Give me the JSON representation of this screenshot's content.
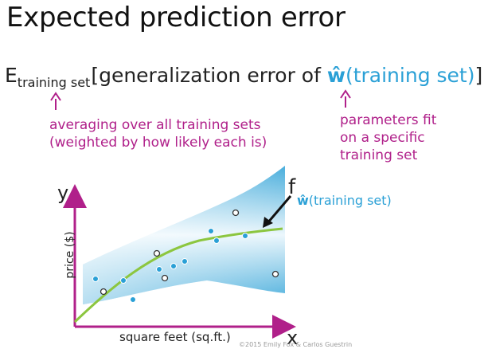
{
  "title": "Expected prediction error",
  "formula": {
    "e": "E",
    "sub": "training set",
    "open": "[generalization error of ",
    "w": "ŵ",
    "arg": "(training set)",
    "close": "]"
  },
  "notes": {
    "left_line1": "averaging over all training sets",
    "left_line2": "(weighted by how likely each is)",
    "right_line1": "parameters fit",
    "right_line2": "on a specific",
    "right_line3": "training set"
  },
  "plot": {
    "y_letter": "y",
    "x_letter": "x",
    "ylabel": "price ($)",
    "xlabel": "square feet (sq.ft.)",
    "f_label": "f",
    "f_sub_w": "ŵ",
    "f_sub_arg": "(training set)"
  },
  "copyright": "©2015 Emily Fox & Carlos Guestrin",
  "colors": {
    "accent_blue": "#2aa0d6",
    "magenta": "#b0208a",
    "fit_green": "#8cc63f",
    "axis_magenta": "#b0208a"
  }
}
